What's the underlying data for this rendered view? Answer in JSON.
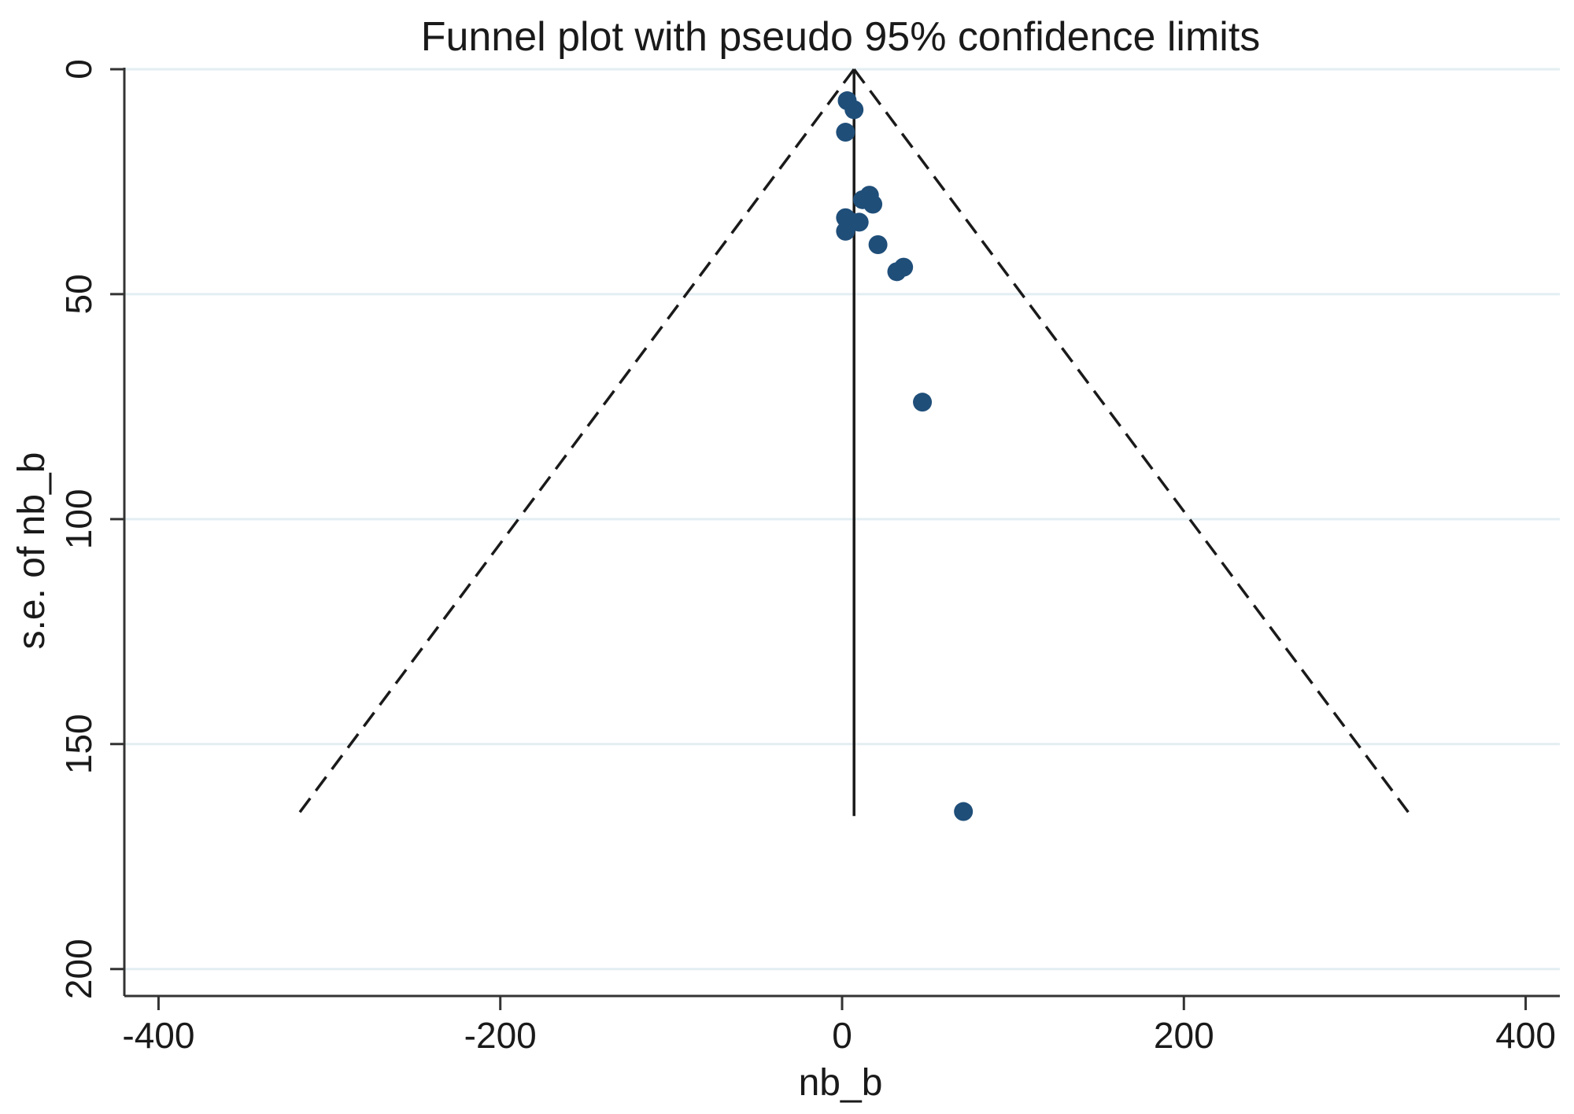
{
  "chart_data": {
    "type": "scatter",
    "title": "Funnel plot with pseudo 95% confidence limits",
    "xlabel": "nb_b",
    "ylabel": "s.e. of nb_b",
    "xlim": [
      -420,
      420
    ],
    "ylim": [
      0,
      206
    ],
    "y_reversed": true,
    "x_ticks": [
      -400,
      -200,
      0,
      200,
      400
    ],
    "x_tick_labels": [
      "-400",
      "-200",
      "0",
      "200",
      "400"
    ],
    "y_ticks": [
      0,
      50,
      100,
      150,
      200
    ],
    "y_tick_labels": [
      "0",
      "50",
      "100",
      "150",
      "200"
    ],
    "y_tick_labels_rotated": true,
    "grid": "horizontal",
    "legend": "none",
    "pooled_estimate": 7,
    "funnel": {
      "apex": [
        7,
        0
      ],
      "lower_left": [
        -319,
        166
      ],
      "lower_right": [
        333,
        166
      ],
      "line_style": "dashed"
    },
    "reference_line": {
      "x": 7,
      "y_from": 0,
      "y_to": 166,
      "line_style": "solid"
    },
    "points": [
      {
        "x": 3,
        "y": 7
      },
      {
        "x": 7,
        "y": 9
      },
      {
        "x": 2,
        "y": 14
      },
      {
        "x": 16,
        "y": 28
      },
      {
        "x": 12,
        "y": 29
      },
      {
        "x": 18,
        "y": 30
      },
      {
        "x": 2,
        "y": 33
      },
      {
        "x": 6,
        "y": 34
      },
      {
        "x": 10,
        "y": 34
      },
      {
        "x": 2,
        "y": 36
      },
      {
        "x": 21,
        "y": 39
      },
      {
        "x": 36,
        "y": 44
      },
      {
        "x": 32,
        "y": 45
      },
      {
        "x": 47,
        "y": 74
      },
      {
        "x": 71,
        "y": 165
      }
    ],
    "colors": {
      "marker": "#1f4e79",
      "grid": "#e3eef2",
      "axis": "#333333",
      "funnel": "#1a1a1a",
      "background": "#ffffff"
    }
  }
}
